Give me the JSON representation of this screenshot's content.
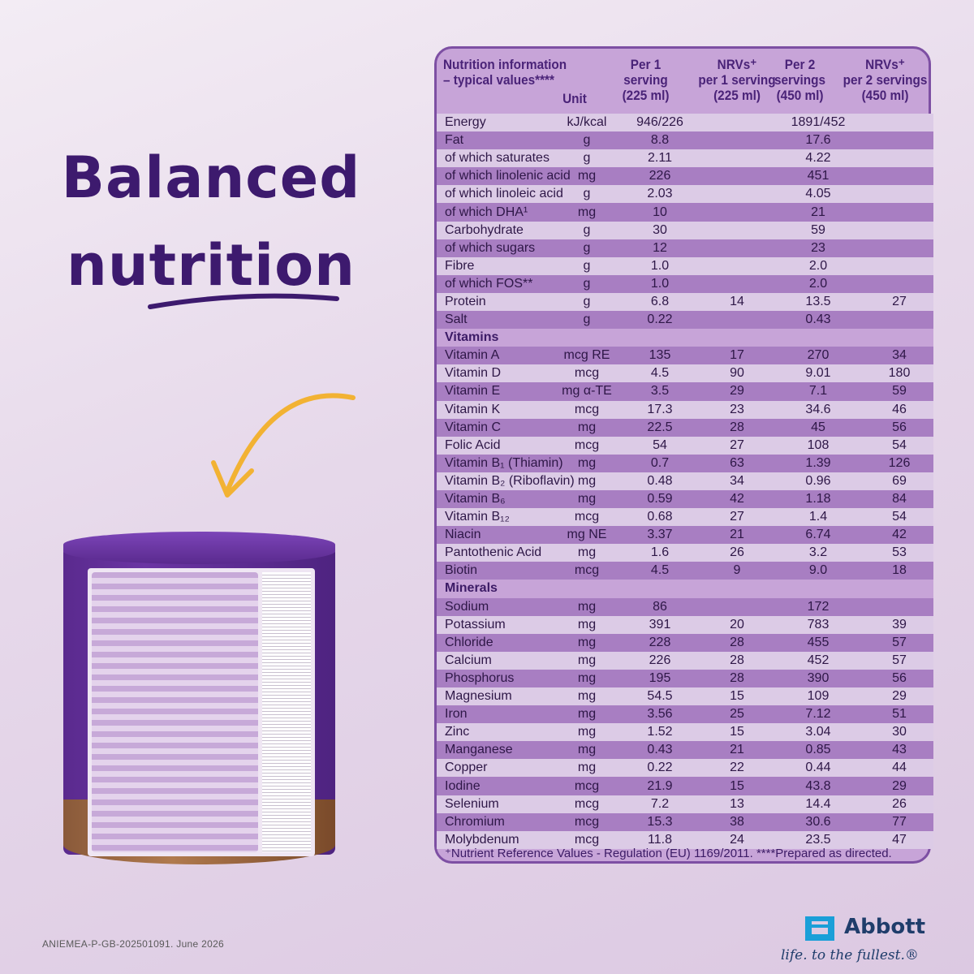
{
  "headline": {
    "line1": "Balanced",
    "line2": "nutrition"
  },
  "colors": {
    "brand_purple": "#3d1a6e",
    "arrow_gold": "#f2b233",
    "abbott_blue": "#1f3d6b"
  },
  "table": {
    "header": {
      "title_line1": "Nutrition information",
      "title_line2": "– typical values****",
      "unit": "Unit",
      "col1": [
        "Per 1",
        "serving",
        "(225 ml)"
      ],
      "col2": [
        "NRVs⁺",
        "per 1 serving",
        "(225 ml)"
      ],
      "col3": [
        "Per 2",
        "servings",
        "(450 ml)"
      ],
      "col4": [
        "NRVs⁺",
        "per 2 servings",
        "(450 ml)"
      ]
    },
    "rows": [
      {
        "name": "Energy",
        "unit": "kJ/kcal",
        "v1": "946/226",
        "v2": "",
        "v3": "1891/452",
        "v4": ""
      },
      {
        "name": "Fat",
        "unit": "g",
        "v1": "8.8",
        "v2": "",
        "v3": "17.6",
        "v4": ""
      },
      {
        "name": " of which saturates",
        "unit": "g",
        "v1": "2.11",
        "v2": "",
        "v3": "4.22",
        "v4": ""
      },
      {
        "name": "  of which linolenic acid",
        "unit": "mg",
        "v1": "226",
        "v2": "",
        "v3": "451",
        "v4": ""
      },
      {
        "name": "  of which linoleic acid",
        "unit": "g",
        "v1": "2.03",
        "v2": "",
        "v3": "4.05",
        "v4": ""
      },
      {
        "name": "  of which DHA¹",
        "unit": "mg",
        "v1": "10",
        "v2": "",
        "v3": "21",
        "v4": ""
      },
      {
        "name": "Carbohydrate",
        "unit": "g",
        "v1": "30",
        "v2": "",
        "v3": "59",
        "v4": ""
      },
      {
        "name": " of which sugars",
        "unit": "g",
        "v1": "12",
        "v2": "",
        "v3": "23",
        "v4": ""
      },
      {
        "name": "Fibre",
        "unit": "g",
        "v1": "1.0",
        "v2": "",
        "v3": "2.0",
        "v4": ""
      },
      {
        "name": "of which FOS**",
        "unit": "g",
        "v1": "1.0",
        "v2": "",
        "v3": "2.0",
        "v4": ""
      },
      {
        "name": "Protein",
        "unit": "g",
        "v1": "6.8",
        "v2": "14",
        "v3": "13.5",
        "v4": "27"
      },
      {
        "name": "Salt",
        "unit": "g",
        "v1": "0.22",
        "v2": "",
        "v3": "0.43",
        "v4": ""
      },
      {
        "name": "Vitamins",
        "section": true
      },
      {
        "name": "Vitamin A",
        "unit": "mcg RE",
        "v1": "135",
        "v2": "17",
        "v3": "270",
        "v4": "34"
      },
      {
        "name": "Vitamin D",
        "unit": "mcg",
        "v1": "4.5",
        "v2": "90",
        "v3": "9.01",
        "v4": "180"
      },
      {
        "name": "Vitamin E",
        "unit": "mg α-TE",
        "v1": "3.5",
        "v2": "29",
        "v3": "7.1",
        "v4": "59"
      },
      {
        "name": "Vitamin K",
        "unit": "mcg",
        "v1": "17.3",
        "v2": "23",
        "v3": "34.6",
        "v4": "46"
      },
      {
        "name": "Vitamin C",
        "unit": "mg",
        "v1": "22.5",
        "v2": "28",
        "v3": "45",
        "v4": "56"
      },
      {
        "name": "Folic Acid",
        "unit": "mcg",
        "v1": "54",
        "v2": "27",
        "v3": "108",
        "v4": "54"
      },
      {
        "name": "Vitamin B₁ (Thiamin)",
        "unit": "mg",
        "v1": "0.7",
        "v2": "63",
        "v3": "1.39",
        "v4": "126"
      },
      {
        "name": "Vitamin B₂ (Riboflavin)",
        "unit": "mg",
        "v1": "0.48",
        "v2": "34",
        "v3": "0.96",
        "v4": "69"
      },
      {
        "name": "Vitamin B₆",
        "unit": "mg",
        "v1": "0.59",
        "v2": "42",
        "v3": "1.18",
        "v4": "84"
      },
      {
        "name": "Vitamin B₁₂",
        "unit": "mcg",
        "v1": "0.68",
        "v2": "27",
        "v3": "1.4",
        "v4": "54"
      },
      {
        "name": "Niacin",
        "unit": "mg NE",
        "v1": "3.37",
        "v2": "21",
        "v3": "6.74",
        "v4": "42"
      },
      {
        "name": "Pantothenic Acid",
        "unit": "mg",
        "v1": "1.6",
        "v2": "26",
        "v3": "3.2",
        "v4": "53"
      },
      {
        "name": "Biotin",
        "unit": "mcg",
        "v1": "4.5",
        "v2": "9",
        "v3": "9.0",
        "v4": "18"
      },
      {
        "name": "Minerals",
        "section": true
      },
      {
        "name": "Sodium",
        "unit": "mg",
        "v1": "86",
        "v2": "",
        "v3": "172",
        "v4": ""
      },
      {
        "name": "Potassium",
        "unit": "mg",
        "v1": "391",
        "v2": "20",
        "v3": "783",
        "v4": "39"
      },
      {
        "name": "Chloride",
        "unit": "mg",
        "v1": "228",
        "v2": "28",
        "v3": "455",
        "v4": "57"
      },
      {
        "name": "Calcium",
        "unit": "mg",
        "v1": "226",
        "v2": "28",
        "v3": "452",
        "v4": "57"
      },
      {
        "name": "Phosphorus",
        "unit": "mg",
        "v1": "195",
        "v2": "28",
        "v3": "390",
        "v4": "56"
      },
      {
        "name": "Magnesium",
        "unit": "mg",
        "v1": "54.5",
        "v2": "15",
        "v3": "109",
        "v4": "29"
      },
      {
        "name": "Iron",
        "unit": "mg",
        "v1": "3.56",
        "v2": "25",
        "v3": "7.12",
        "v4": "51"
      },
      {
        "name": "Zinc",
        "unit": "mg",
        "v1": "1.52",
        "v2": "15",
        "v3": "3.04",
        "v4": "30"
      },
      {
        "name": "Manganese",
        "unit": "mg",
        "v1": "0.43",
        "v2": "21",
        "v3": "0.85",
        "v4": "43"
      },
      {
        "name": "Copper",
        "unit": "mg",
        "v1": "0.22",
        "v2": "22",
        "v3": "0.44",
        "v4": "44"
      },
      {
        "name": "Iodine",
        "unit": "mcg",
        "v1": "21.9",
        "v2": "15",
        "v3": "43.8",
        "v4": "29"
      },
      {
        "name": "Selenium",
        "unit": "mcg",
        "v1": "7.2",
        "v2": "13",
        "v3": "14.4",
        "v4": "26"
      },
      {
        "name": "Chromium",
        "unit": "mcg",
        "v1": "15.3",
        "v2": "38",
        "v3": "30.6",
        "v4": "77"
      },
      {
        "name": "Molybdenum",
        "unit": "mcg",
        "v1": "11.8",
        "v2": "24",
        "v3": "23.5",
        "v4": "47"
      }
    ],
    "footnote": "⁺Nutrient Reference Values - Regulation (EU) 1169/2011. ****Prepared as directed."
  },
  "footer": {
    "reference_code": "ANIEMEA-P-GB-202501091.  June 2026",
    "brand": "Abbott",
    "tagline": "life. to the fullest.®"
  }
}
